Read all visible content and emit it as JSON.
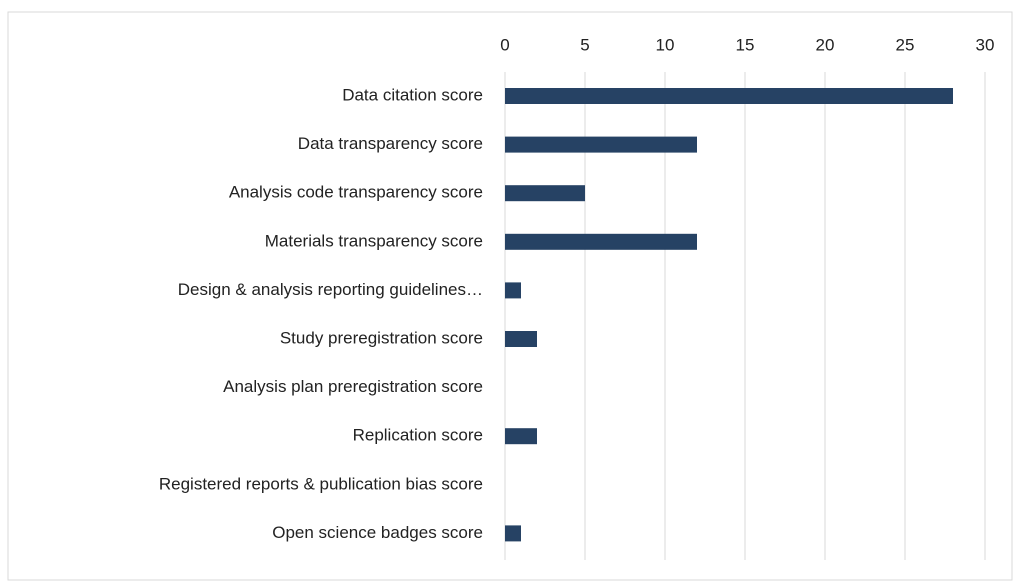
{
  "chart_data": {
    "type": "bar",
    "orientation": "horizontal",
    "categories": [
      "Data citation score",
      "Data transparency score",
      "Analysis code transparency score",
      "Materials transparency score",
      "Design & analysis reporting guidelines…",
      "Study preregistration score",
      "Analysis plan preregistration score",
      "Replication score",
      "Registered reports & publication bias score",
      "Open science badges score"
    ],
    "values": [
      28,
      12,
      5,
      12,
      1,
      2,
      0,
      2,
      0,
      1
    ],
    "color": "#264264",
    "xlim": [
      0,
      30
    ],
    "xticks": [
      0,
      5,
      10,
      15,
      20,
      25,
      30
    ],
    "grid": true
  }
}
